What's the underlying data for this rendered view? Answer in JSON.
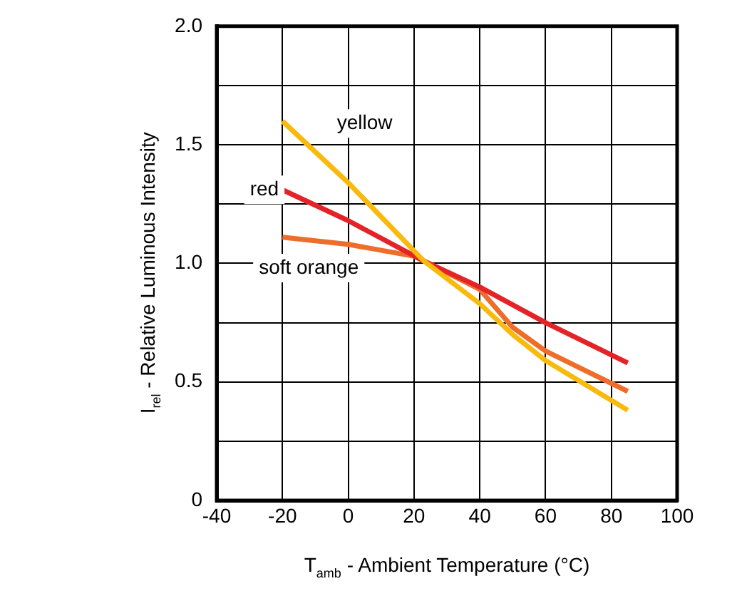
{
  "chart_data": {
    "type": "line",
    "xlabel": "T$_{amb}$ - Ambient Temperature (°C)",
    "ylabel": "I$_{rel}$ - Relative Luminous Intensity",
    "xlim": [
      -40,
      100
    ],
    "xticks": [
      -40,
      -20,
      0,
      20,
      40,
      60,
      80,
      100
    ],
    "ylim": [
      0,
      2
    ],
    "yticks": [
      0,
      {
        "value": 0.25,
        "label": null
      },
      0.5,
      {
        "value": 0.75,
        "label": null
      },
      {
        "value": 1,
        "label": "1.0"
      },
      {
        "value": 1.25,
        "label": null
      },
      1.5,
      {
        "value": 1.75,
        "label": null
      },
      {
        "value": 2,
        "label": "2.0"
      }
    ],
    "grid": true,
    "legend": false,
    "marker": "none",
    "line_style": "solid",
    "series": [
      {
        "name": "yellow",
        "color": "#f9b90d",
        "x": [
          -20,
          0,
          23,
          40,
          50,
          60,
          85
        ],
        "values": [
          1.6,
          1.34,
          1.01,
          0.83,
          0.7,
          0.59,
          0.38
        ]
      },
      {
        "name": "red",
        "color": "#e42328",
        "x": [
          -20,
          0,
          23,
          40,
          60,
          85
        ],
        "values": [
          1.31,
          1.18,
          1.01,
          0.9,
          0.75,
          0.58
        ]
      },
      {
        "name": "soft orange",
        "color": "#ee6d2a",
        "x": [
          -20,
          0,
          20,
          23,
          40,
          50,
          60,
          85
        ],
        "values": [
          1.11,
          1.08,
          1.03,
          1.01,
          0.89,
          0.73,
          0.63,
          0.46
        ]
      }
    ]
  }
}
